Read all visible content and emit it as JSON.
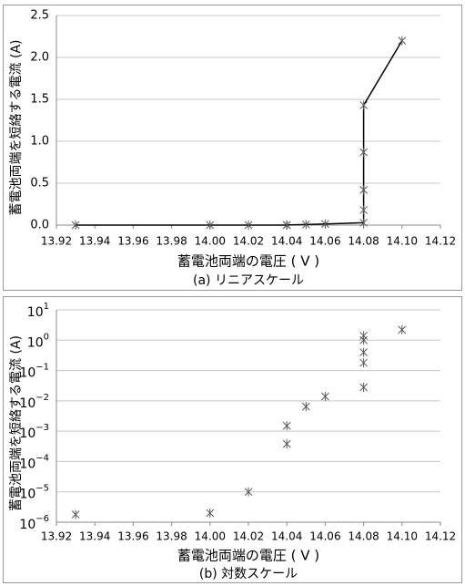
{
  "chart_data": [
    {
      "type": "line",
      "caption": "(a) リニアスケール",
      "xlabel": "蓄電池両端の電圧 ( V )",
      "ylabel": "蓄電池両端を短絡する電流 (A)",
      "x": [
        13.93,
        14.0,
        14.02,
        14.04,
        14.04,
        14.05,
        14.06,
        14.08,
        14.08,
        14.08,
        14.08,
        14.08,
        14.1
      ],
      "values": [
        1.8e-06,
        2e-06,
        1e-05,
        0.00038,
        0.0015,
        0.0065,
        0.014,
        0.028,
        0.18,
        0.42,
        0.87,
        1.43,
        2.2
      ],
      "color": "#000000",
      "marker_color": "#595959",
      "xlim": [
        13.92,
        14.12
      ],
      "xticks": [
        13.92,
        13.94,
        13.96,
        13.98,
        {
          "value": 14.0,
          "label": "14.00"
        },
        14.02,
        14.04,
        14.06,
        14.08,
        {
          "value": 14.1,
          "label": "14.10"
        },
        14.12
      ],
      "ylim": [
        0,
        2.5
      ],
      "yticks": [
        {
          "value": 0,
          "label": "0.0"
        },
        0.5,
        {
          "value": 1,
          "label": "1.0"
        },
        1.5,
        {
          "value": 2,
          "label": "2.0"
        },
        2.5
      ],
      "grid": true,
      "log_y": false
    },
    {
      "type": "scatter",
      "caption": "(b) 対数スケール",
      "xlabel": "蓄電池両端の電圧 ( V )",
      "ylabel": "蓄電池両端を短絡する電流 (A)",
      "x": [
        13.93,
        14.0,
        14.02,
        14.04,
        14.04,
        14.05,
        14.06,
        14.08,
        14.08,
        14.08,
        14.08,
        14.08,
        14.1
      ],
      "values": [
        1.8e-06,
        2e-06,
        1e-05,
        0.00038,
        0.0015,
        0.0065,
        0.014,
        0.028,
        0.18,
        0.4,
        1.0,
        1.4,
        2.2
      ],
      "marker_color": "#595959",
      "xlim": [
        13.92,
        14.12
      ],
      "xticks": [
        13.92,
        13.94,
        13.96,
        13.98,
        {
          "value": 14.0,
          "label": "14.00"
        },
        14.02,
        14.04,
        14.06,
        14.08,
        {
          "value": 14.1,
          "label": "14.10"
        },
        14.12
      ],
      "ylim": [
        1e-06,
        10
      ],
      "yticks": [
        {
          "value": 1e-06,
          "label": "10",
          "exponent": "−6"
        },
        {
          "value": 1e-05,
          "label": "10",
          "exponent": "−5"
        },
        {
          "value": 0.0001,
          "label": "10",
          "exponent": "−4"
        },
        {
          "value": 0.001,
          "label": "10",
          "exponent": "−3"
        },
        {
          "value": 0.01,
          "label": "10",
          "exponent": "−2"
        },
        {
          "value": 0.1,
          "label": "10",
          "exponent": "−1"
        },
        {
          "value": 1,
          "label": "10",
          "exponent": "0"
        },
        {
          "value": 10,
          "label": "10",
          "exponent": "1"
        }
      ],
      "grid": true,
      "log_y": true
    }
  ]
}
